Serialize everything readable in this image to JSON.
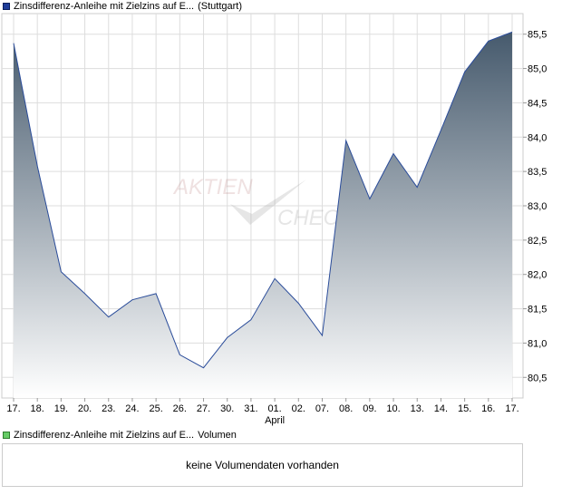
{
  "legend_price": {
    "name": "Zinsdifferenz-Anleihe mit Zielzins auf E...",
    "exchange": "(Stuttgart)",
    "color": "#1f3d99"
  },
  "legend_volume": {
    "name": "Zinsdifferenz-Anleihe mit Zielzins auf E...",
    "label": "Volumen",
    "color": "#66cc66"
  },
  "watermark": {
    "line1": "AKTIEN",
    "line2": "CHECK"
  },
  "volume_box": {
    "message": "keine Volumendaten vorhanden"
  },
  "colors": {
    "line": "#2a4c9a",
    "fill_top": "#465a6d",
    "fill_bottom": "#ffffff",
    "grid": "#dddddd"
  },
  "chart_data": {
    "type": "area",
    "title": "",
    "xlabel": "",
    "ylabel": "",
    "categories": [
      "17.",
      "18.",
      "19.",
      "20.",
      "23.",
      "24.",
      "25.",
      "26.",
      "27.",
      "30.",
      "31.",
      "01.",
      "02.",
      "07.",
      "08.",
      "09.",
      "10.",
      "13.",
      "14.",
      "15.",
      "16.",
      "17."
    ],
    "month_label": {
      "text": "April",
      "at_index": 11
    },
    "series": [
      {
        "values": [
          85.37,
          83.58,
          82.04,
          81.72,
          81.38,
          81.63,
          81.72,
          80.83,
          80.64,
          81.08,
          81.34,
          81.94,
          81.58,
          81.11,
          83.95,
          83.1,
          83.76,
          83.27,
          84.1,
          84.95,
          85.4,
          85.53
        ]
      }
    ],
    "ylim": [
      80.2,
      85.8
    ],
    "yticks": [
      80.5,
      81.0,
      81.5,
      82.0,
      82.5,
      83.0,
      83.5,
      84.0,
      84.5,
      85.0,
      85.5
    ],
    "ytick_labels": [
      "80,5",
      "81,0",
      "81,5",
      "82,0",
      "82,5",
      "83,0",
      "83,5",
      "84,0",
      "84,5",
      "85,0",
      "85,5"
    ],
    "grid": true,
    "y_axis_side": "right"
  }
}
